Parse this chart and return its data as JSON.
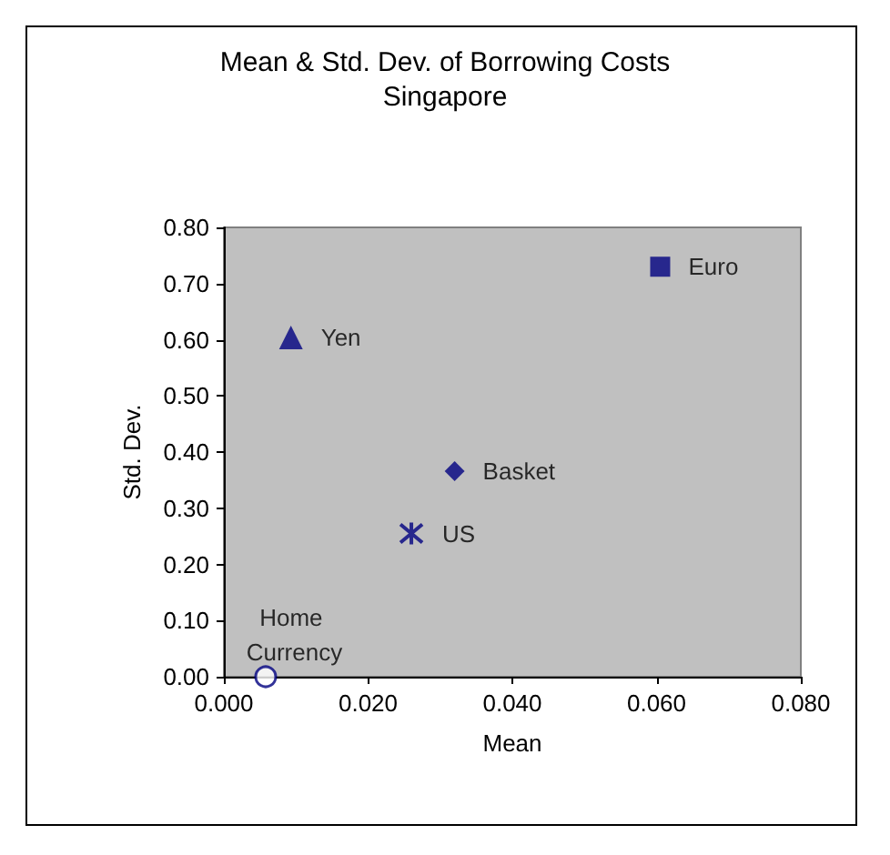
{
  "chart_data": {
    "type": "scatter",
    "title": "Mean & Std. Dev. of Borrowing Costs",
    "subtitle": "Singapore",
    "xlabel": "Mean",
    "ylabel": "Std. Dev.",
    "xlim": [
      0,
      0.08
    ],
    "xticks": [
      {
        "value": 0,
        "label": "0.000"
      },
      {
        "value": 0.02,
        "label": "0.020"
      },
      {
        "value": 0.04,
        "label": "0.040"
      },
      {
        "value": 0.06,
        "label": "0.060"
      },
      {
        "value": 0.08,
        "label": "0.080"
      }
    ],
    "ylim": [
      0,
      0.8
    ],
    "yticks": [
      {
        "value": 0,
        "label": "0.00"
      },
      {
        "value": 0.1,
        "label": "0.10"
      },
      {
        "value": 0.2,
        "label": "0.20"
      },
      {
        "value": 0.3,
        "label": "0.30"
      },
      {
        "value": 0.4,
        "label": "0.40"
      },
      {
        "value": 0.5,
        "label": "0.50"
      },
      {
        "value": 0.6,
        "label": "0.60"
      },
      {
        "value": 0.7,
        "label": "0.70"
      },
      {
        "value": 0.8,
        "label": "0.80"
      }
    ],
    "grid": false,
    "legend": false,
    "series": [
      {
        "name": "Euro",
        "color": "#000080",
        "marker": "square",
        "x": [
          0.0605
        ],
        "values": [
          0.73
        ]
      },
      {
        "name": "Yen",
        "color": "#000080",
        "marker": "triangle",
        "x": [
          0.0093
        ],
        "values": [
          0.604
        ]
      },
      {
        "name": "Basket",
        "color": "#000080",
        "marker": "diamond",
        "x": [
          0.032
        ],
        "values": [
          0.366
        ]
      },
      {
        "name": "US",
        "color": "#000080",
        "marker": "cross",
        "x": [
          0.026
        ],
        "values": [
          0.255
        ]
      },
      {
        "name": "Home Currency",
        "color": "#000080",
        "marker": "circle",
        "x": [
          0.0058
        ],
        "values": [
          0
        ]
      }
    ]
  }
}
